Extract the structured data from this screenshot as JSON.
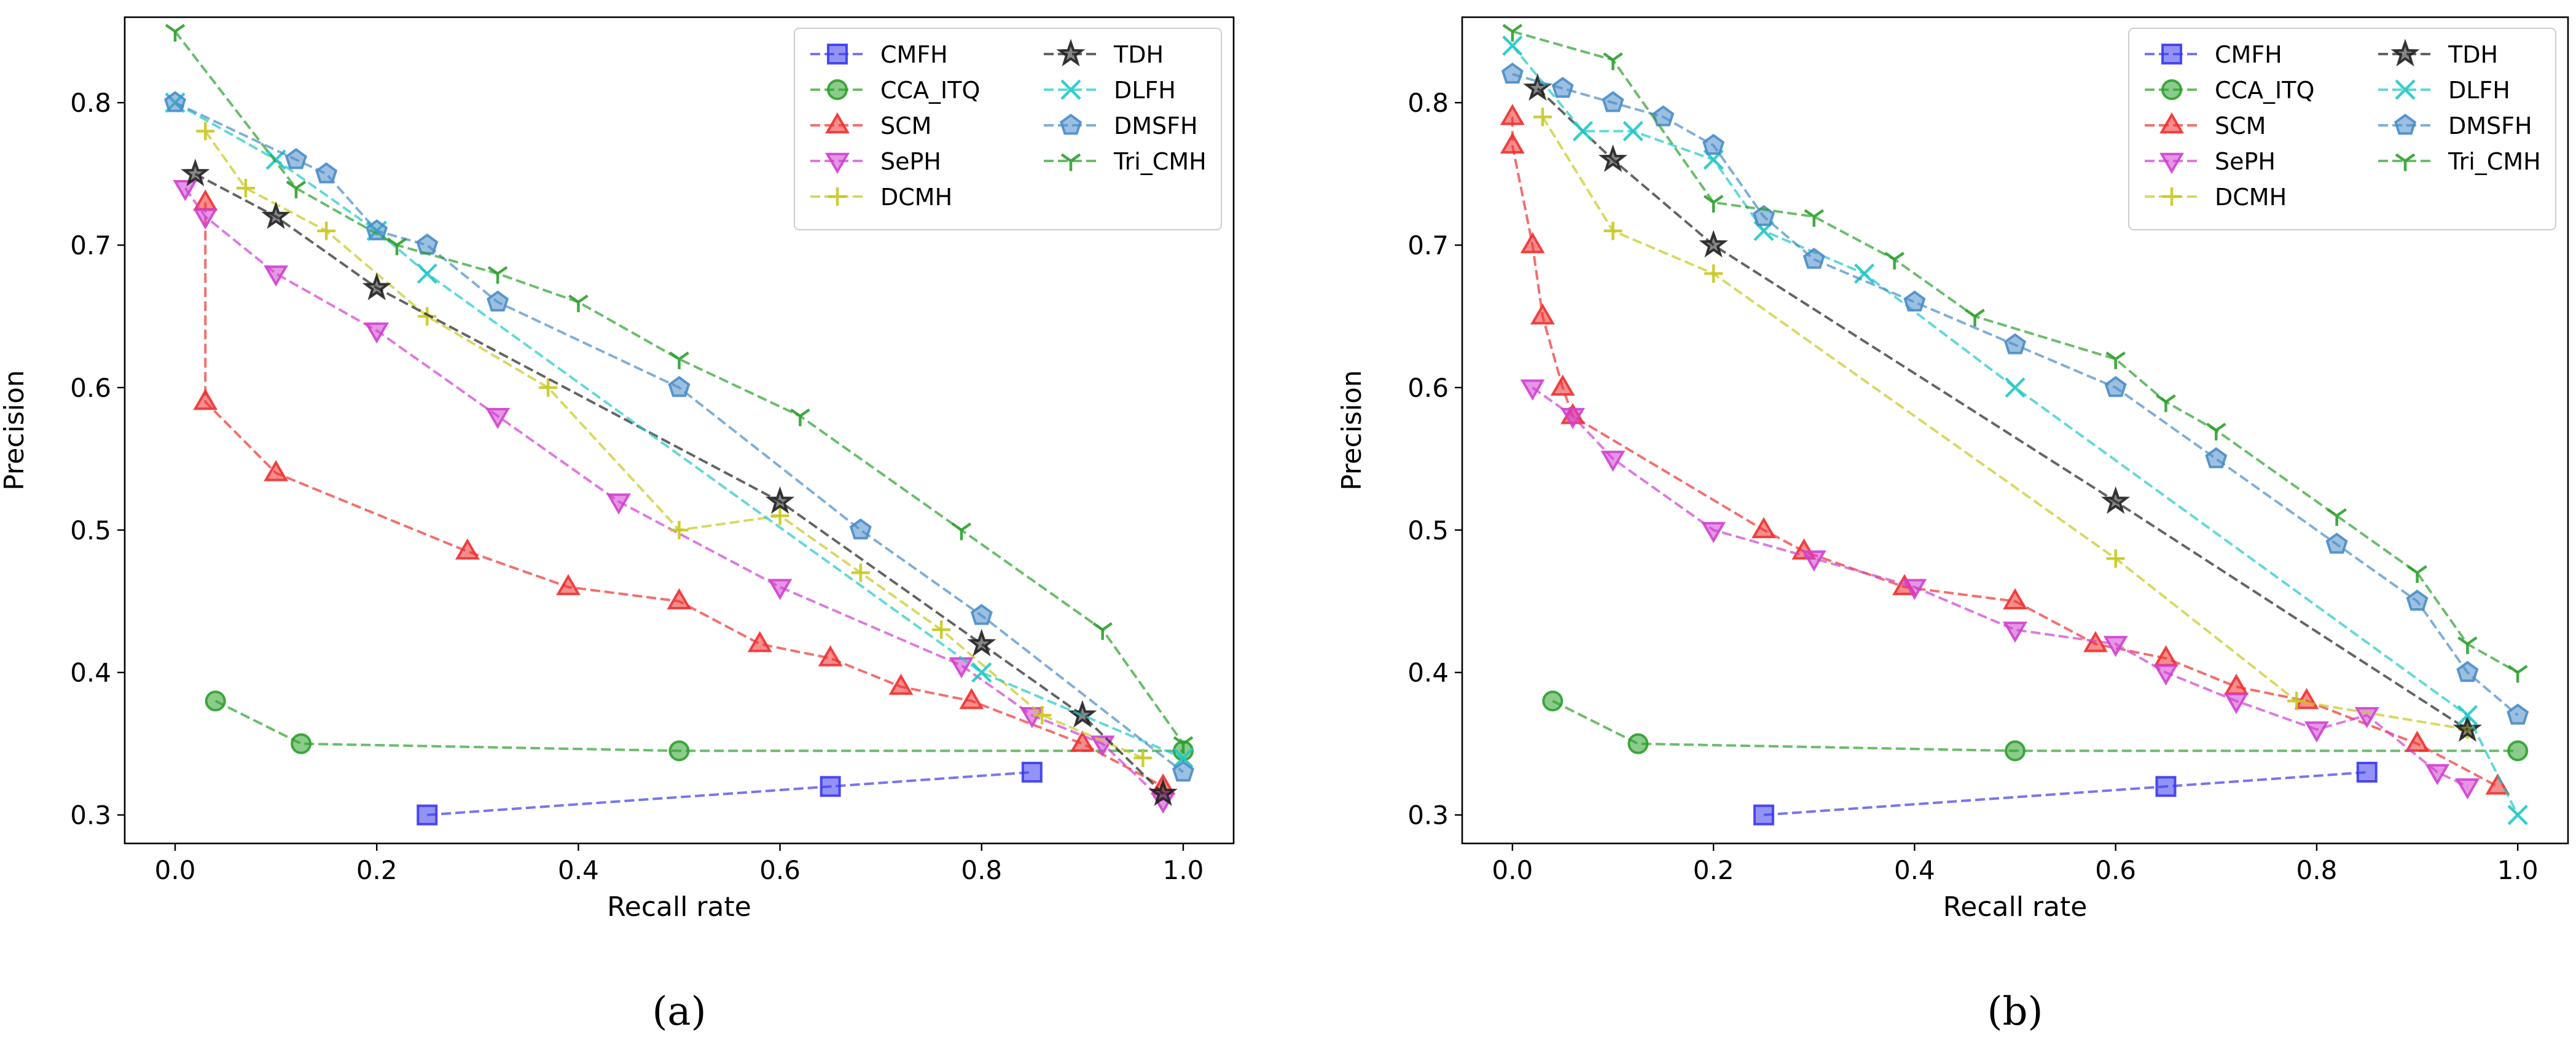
{
  "figure": {
    "panels": [
      "a",
      "b"
    ],
    "caption_a": "(a)",
    "caption_b": "(b)"
  },
  "series_styles": {
    "CMFH": {
      "color": "#3a3af0",
      "marker": "square"
    },
    "CCA_ITQ": {
      "color": "#2ca02c",
      "marker": "circle"
    },
    "SCM": {
      "color": "#f03030",
      "marker": "triangle-up"
    },
    "SePH": {
      "color": "#d040d0",
      "marker": "triangle-down"
    },
    "DCMH": {
      "color": "#c8c820",
      "marker": "plus"
    },
    "TDH": {
      "color": "#222222",
      "marker": "star"
    },
    "DLFH": {
      "color": "#20c8c8",
      "marker": "x"
    },
    "DMSFH": {
      "color": "#4a8cc8",
      "marker": "pentagon"
    },
    "Tri_CMH": {
      "color": "#2ca02c",
      "marker": "tri-down"
    }
  },
  "chart_data": [
    {
      "type": "line",
      "panel": "a",
      "title": "",
      "xlabel": "Recall rate",
      "ylabel": "Precision",
      "xlim": [
        -0.05,
        1.05
      ],
      "ylim": [
        0.28,
        0.86
      ],
      "xticks": [
        0.0,
        0.2,
        0.4,
        0.6,
        0.8,
        1.0
      ],
      "xtick_labels": [
        "0.0",
        "0.2",
        "0.4",
        "0.6",
        "0.8",
        "1.0"
      ],
      "yticks": [
        0.3,
        0.4,
        0.5,
        0.6,
        0.7,
        0.8
      ],
      "ytick_labels": [
        "0.3",
        "0.4",
        "0.5",
        "0.6",
        "0.7",
        "0.8"
      ],
      "legend_position": "top-right",
      "series": [
        {
          "name": "CMFH",
          "x": [
            0.25,
            0.65,
            0.85
          ],
          "y": [
            0.3,
            0.32,
            0.33
          ]
        },
        {
          "name": "CCA_ITQ",
          "x": [
            0.04,
            0.125,
            0.5,
            1.0
          ],
          "y": [
            0.38,
            0.35,
            0.345,
            0.345
          ]
        },
        {
          "name": "SCM",
          "x": [
            0.03,
            0.03,
            0.1,
            0.29,
            0.39,
            0.5,
            0.58,
            0.65,
            0.72,
            0.79,
            0.9,
            0.98
          ],
          "y": [
            0.73,
            0.59,
            0.54,
            0.485,
            0.46,
            0.45,
            0.42,
            0.41,
            0.39,
            0.38,
            0.35,
            0.32
          ]
        },
        {
          "name": "SePH",
          "x": [
            0.01,
            0.03,
            0.1,
            0.2,
            0.32,
            0.44,
            0.6,
            0.78,
            0.85,
            0.92,
            0.98
          ],
          "y": [
            0.74,
            0.72,
            0.68,
            0.64,
            0.58,
            0.52,
            0.46,
            0.405,
            0.37,
            0.35,
            0.31
          ]
        },
        {
          "name": "DCMH",
          "x": [
            0.03,
            0.07,
            0.15,
            0.25,
            0.37,
            0.5,
            0.6,
            0.68,
            0.76,
            0.86,
            0.96
          ],
          "y": [
            0.78,
            0.74,
            0.71,
            0.65,
            0.6,
            0.5,
            0.51,
            0.47,
            0.43,
            0.37,
            0.34
          ]
        },
        {
          "name": "TDH",
          "x": [
            0.02,
            0.1,
            0.2,
            0.6,
            0.8,
            0.9,
            0.98
          ],
          "y": [
            0.75,
            0.72,
            0.67,
            0.52,
            0.42,
            0.37,
            0.315
          ]
        },
        {
          "name": "DLFH",
          "x": [
            0.0,
            0.1,
            0.2,
            0.25,
            0.8,
            1.0
          ],
          "y": [
            0.8,
            0.76,
            0.71,
            0.68,
            0.4,
            0.34
          ]
        },
        {
          "name": "DMSFH",
          "x": [
            0.0,
            0.12,
            0.15,
            0.2,
            0.25,
            0.32,
            0.5,
            0.68,
            0.8,
            1.0
          ],
          "y": [
            0.8,
            0.76,
            0.75,
            0.71,
            0.7,
            0.66,
            0.6,
            0.5,
            0.44,
            0.33
          ]
        },
        {
          "name": "Tri_CMH",
          "x": [
            0.0,
            0.12,
            0.22,
            0.32,
            0.4,
            0.5,
            0.62,
            0.78,
            0.92,
            1.0
          ],
          "y": [
            0.85,
            0.74,
            0.7,
            0.68,
            0.66,
            0.62,
            0.58,
            0.5,
            0.43,
            0.35
          ]
        }
      ]
    },
    {
      "type": "line",
      "panel": "b",
      "title": "",
      "xlabel": "Recall rate",
      "ylabel": "Precision",
      "xlim": [
        -0.05,
        1.05
      ],
      "ylim": [
        0.28,
        0.86
      ],
      "xticks": [
        0.0,
        0.2,
        0.4,
        0.6,
        0.8,
        1.0
      ],
      "xtick_labels": [
        "0.0",
        "0.2",
        "0.4",
        "0.6",
        "0.8",
        "1.0"
      ],
      "yticks": [
        0.3,
        0.4,
        0.5,
        0.6,
        0.7,
        0.8
      ],
      "ytick_labels": [
        "0.3",
        "0.4",
        "0.5",
        "0.6",
        "0.7",
        "0.8"
      ],
      "legend_position": "top-right",
      "series": [
        {
          "name": "CMFH",
          "x": [
            0.25,
            0.65,
            0.85
          ],
          "y": [
            0.3,
            0.32,
            0.33
          ]
        },
        {
          "name": "CCA_ITQ",
          "x": [
            0.04,
            0.125,
            0.5,
            1.0
          ],
          "y": [
            0.38,
            0.35,
            0.345,
            0.345
          ]
        },
        {
          "name": "SCM",
          "x": [
            0.0,
            0.0,
            0.02,
            0.03,
            0.05,
            0.06,
            0.25,
            0.29,
            0.39,
            0.5,
            0.58,
            0.65,
            0.72,
            0.79,
            0.9,
            0.98
          ],
          "y": [
            0.79,
            0.77,
            0.7,
            0.65,
            0.6,
            0.58,
            0.5,
            0.485,
            0.46,
            0.45,
            0.42,
            0.41,
            0.39,
            0.38,
            0.35,
            0.32
          ]
        },
        {
          "name": "SePH",
          "x": [
            0.02,
            0.06,
            0.1,
            0.2,
            0.3,
            0.4,
            0.5,
            0.6,
            0.65,
            0.72,
            0.8,
            0.85,
            0.92,
            0.95
          ],
          "y": [
            0.6,
            0.58,
            0.55,
            0.5,
            0.48,
            0.46,
            0.43,
            0.42,
            0.4,
            0.38,
            0.36,
            0.37,
            0.33,
            0.32
          ]
        },
        {
          "name": "DCMH",
          "x": [
            0.03,
            0.1,
            0.2,
            0.6,
            0.78,
            0.95
          ],
          "y": [
            0.79,
            0.71,
            0.68,
            0.48,
            0.38,
            0.36
          ]
        },
        {
          "name": "TDH",
          "x": [
            0.025,
            0.1,
            0.2,
            0.6,
            0.95
          ],
          "y": [
            0.81,
            0.76,
            0.7,
            0.52,
            0.36
          ]
        },
        {
          "name": "DLFH",
          "x": [
            0.0,
            0.07,
            0.12,
            0.2,
            0.25,
            0.35,
            0.5,
            0.95,
            1.0
          ],
          "y": [
            0.84,
            0.78,
            0.78,
            0.76,
            0.71,
            0.68,
            0.6,
            0.37,
            0.3
          ]
        },
        {
          "name": "DMSFH",
          "x": [
            0.0,
            0.05,
            0.1,
            0.15,
            0.2,
            0.25,
            0.3,
            0.4,
            0.5,
            0.6,
            0.7,
            0.82,
            0.9,
            0.95,
            1.0
          ],
          "y": [
            0.82,
            0.81,
            0.8,
            0.79,
            0.77,
            0.72,
            0.69,
            0.66,
            0.63,
            0.6,
            0.55,
            0.49,
            0.45,
            0.4,
            0.37
          ]
        },
        {
          "name": "Tri_CMH",
          "x": [
            0.0,
            0.1,
            0.2,
            0.3,
            0.38,
            0.46,
            0.6,
            0.65,
            0.7,
            0.82,
            0.9,
            0.95,
            1.0
          ],
          "y": [
            0.85,
            0.83,
            0.73,
            0.72,
            0.69,
            0.65,
            0.62,
            0.59,
            0.57,
            0.51,
            0.47,
            0.42,
            0.4
          ]
        }
      ]
    }
  ]
}
